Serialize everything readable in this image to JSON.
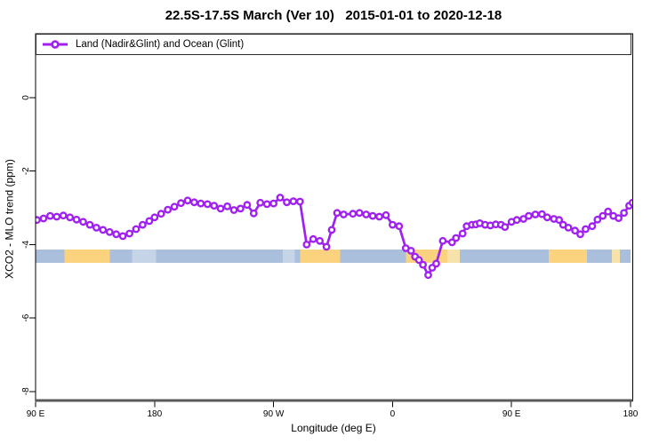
{
  "title": "22.5S-17.5S March (Ver 10)   2015-01-01 to 2020-12-18",
  "legend": {
    "label": "Land (Nadir&Glint) and Ocean (Glint)"
  },
  "colors": {
    "line": "#A020F0",
    "marker_fill": "#ffffff",
    "ocean": "#A9BFDB",
    "ocean_light": "#C6D4E8",
    "land": "#FBD37F",
    "land_pale": "#F6E3AC",
    "box": "#000000",
    "x_axis_line": "#595959",
    "text": "#000000"
  },
  "chart_data": {
    "type": "line",
    "title": "22.5S-17.5S March (Ver 10)   2015-01-01 to 2020-12-18",
    "xlabel": "Longitude (deg E)",
    "ylabel": "XCO2 - MLO trend (ppm)",
    "legend_position": "top-left-full-width",
    "grid": false,
    "xlim": [
      90,
      541.7
    ],
    "ylim": [
      -8.35,
      1.75
    ],
    "x_ticks": {
      "positions": [
        90,
        180,
        270,
        360,
        450,
        540
      ],
      "labels": [
        "90 E",
        "180",
        "90 W",
        "0",
        "90 E",
        "180"
      ],
      "note": "longitude wraps eastward: 90E..180..90W..0..90E..180"
    },
    "y_ticks": {
      "positions": [
        0,
        -2,
        -4,
        -6,
        -8
      ],
      "labels": [
        "0",
        "-2",
        "-4",
        "-6",
        "-8"
      ]
    },
    "series": [
      {
        "name": "Land (Nadir&Glint) and Ocean (Glint)",
        "color": "#A020F0",
        "marker": "open-circle",
        "points": [
          [
            91,
            -3.33
          ],
          [
            96,
            -3.29
          ],
          [
            101,
            -3.22
          ],
          [
            106,
            -3.24
          ],
          [
            111,
            -3.21
          ],
          [
            116,
            -3.26
          ],
          [
            121,
            -3.32
          ],
          [
            126,
            -3.38
          ],
          [
            131,
            -3.46
          ],
          [
            136,
            -3.54
          ],
          [
            141,
            -3.6
          ],
          [
            146,
            -3.66
          ],
          [
            151,
            -3.72
          ],
          [
            156,
            -3.77
          ],
          [
            161,
            -3.7
          ],
          [
            166,
            -3.58
          ],
          [
            171,
            -3.46
          ],
          [
            176,
            -3.36
          ],
          [
            180,
            -3.26
          ],
          [
            185,
            -3.16
          ],
          [
            190,
            -3.05
          ],
          [
            195,
            -2.97
          ],
          [
            200,
            -2.87
          ],
          [
            205,
            -2.8
          ],
          [
            210,
            -2.85
          ],
          [
            215,
            -2.88
          ],
          [
            220,
            -2.9
          ],
          [
            225,
            -2.94
          ],
          [
            230,
            -3.02
          ],
          [
            235,
            -2.96
          ],
          [
            240,
            -3.06
          ],
          [
            245,
            -3.02
          ],
          [
            250,
            -2.92
          ],
          [
            255,
            -3.15
          ],
          [
            260,
            -2.86
          ],
          [
            265,
            -2.9
          ],
          [
            270,
            -2.88
          ],
          [
            275,
            -2.72
          ],
          [
            280,
            -2.85
          ],
          [
            285,
            -2.82
          ],
          [
            290,
            -2.83
          ],
          [
            295,
            -4.0
          ],
          [
            300,
            -3.85
          ],
          [
            305,
            -3.9
          ],
          [
            310,
            -4.06
          ],
          [
            314,
            -3.6
          ],
          [
            318,
            -3.14
          ],
          [
            323,
            -3.18
          ],
          [
            330,
            -3.16
          ],
          [
            335,
            -3.14
          ],
          [
            340,
            -3.18
          ],
          [
            345,
            -3.22
          ],
          [
            350,
            -3.24
          ],
          [
            355,
            -3.2
          ],
          [
            360,
            -3.46
          ],
          [
            365,
            -3.5
          ],
          [
            370,
            -4.1
          ],
          [
            374,
            -4.17
          ],
          [
            377,
            -4.33
          ],
          [
            380,
            -4.42
          ],
          [
            383,
            -4.55
          ],
          [
            387,
            -4.83
          ],
          [
            390,
            -4.63
          ],
          [
            393,
            -4.52
          ],
          [
            398,
            -3.9
          ],
          [
            405,
            -3.94
          ],
          [
            408,
            -3.82
          ],
          [
            413,
            -3.7
          ],
          [
            416,
            -3.5
          ],
          [
            420,
            -3.46
          ],
          [
            423,
            -3.45
          ],
          [
            426,
            -3.42
          ],
          [
            430,
            -3.46
          ],
          [
            434,
            -3.48
          ],
          [
            438,
            -3.45
          ],
          [
            442,
            -3.46
          ],
          [
            445,
            -3.52
          ],
          [
            450,
            -3.38
          ],
          [
            454,
            -3.33
          ],
          [
            459,
            -3.3
          ],
          [
            463,
            -3.22
          ],
          [
            468,
            -3.18
          ],
          [
            473,
            -3.17
          ],
          [
            477,
            -3.26
          ],
          [
            482,
            -3.3
          ],
          [
            486,
            -3.33
          ],
          [
            489,
            -3.46
          ],
          [
            493,
            -3.54
          ],
          [
            498,
            -3.62
          ],
          [
            502,
            -3.72
          ],
          [
            506,
            -3.58
          ],
          [
            511,
            -3.5
          ],
          [
            515,
            -3.32
          ],
          [
            519,
            -3.22
          ],
          [
            523,
            -3.1
          ],
          [
            527,
            -3.22
          ],
          [
            531,
            -3.28
          ],
          [
            535,
            -3.14
          ],
          [
            539,
            -2.94
          ],
          [
            541.5,
            -2.86
          ]
        ]
      }
    ],
    "map_strip": {
      "description": "land/ocean band of latitude zone 22.5S-17.5S drawn across plot",
      "ppm_top": -4.13,
      "ppm_bottom": -4.5,
      "segments": [
        {
          "from": 90,
          "to": 112,
          "type": "ocean"
        },
        {
          "from": 112,
          "to": 146,
          "type": "land"
        },
        {
          "from": 146,
          "to": 290,
          "type": "ocean"
        },
        {
          "from": 290,
          "to": 320.5,
          "type": "land"
        },
        {
          "from": 320.5,
          "to": 370,
          "type": "ocean"
        },
        {
          "from": 370,
          "to": 401.5,
          "type": "land"
        },
        {
          "from": 401.5,
          "to": 411,
          "type": "land_pale"
        },
        {
          "from": 411,
          "to": 478,
          "type": "ocean"
        },
        {
          "from": 478,
          "to": 507,
          "type": "land"
        },
        {
          "from": 507,
          "to": 540,
          "type": "ocean"
        }
      ],
      "overlays": [
        {
          "from": 163,
          "to": 181,
          "type": "ocean_light"
        },
        {
          "from": 277,
          "to": 286,
          "type": "ocean_light"
        },
        {
          "from": 526,
          "to": 532,
          "type": "land_pale"
        }
      ]
    }
  }
}
